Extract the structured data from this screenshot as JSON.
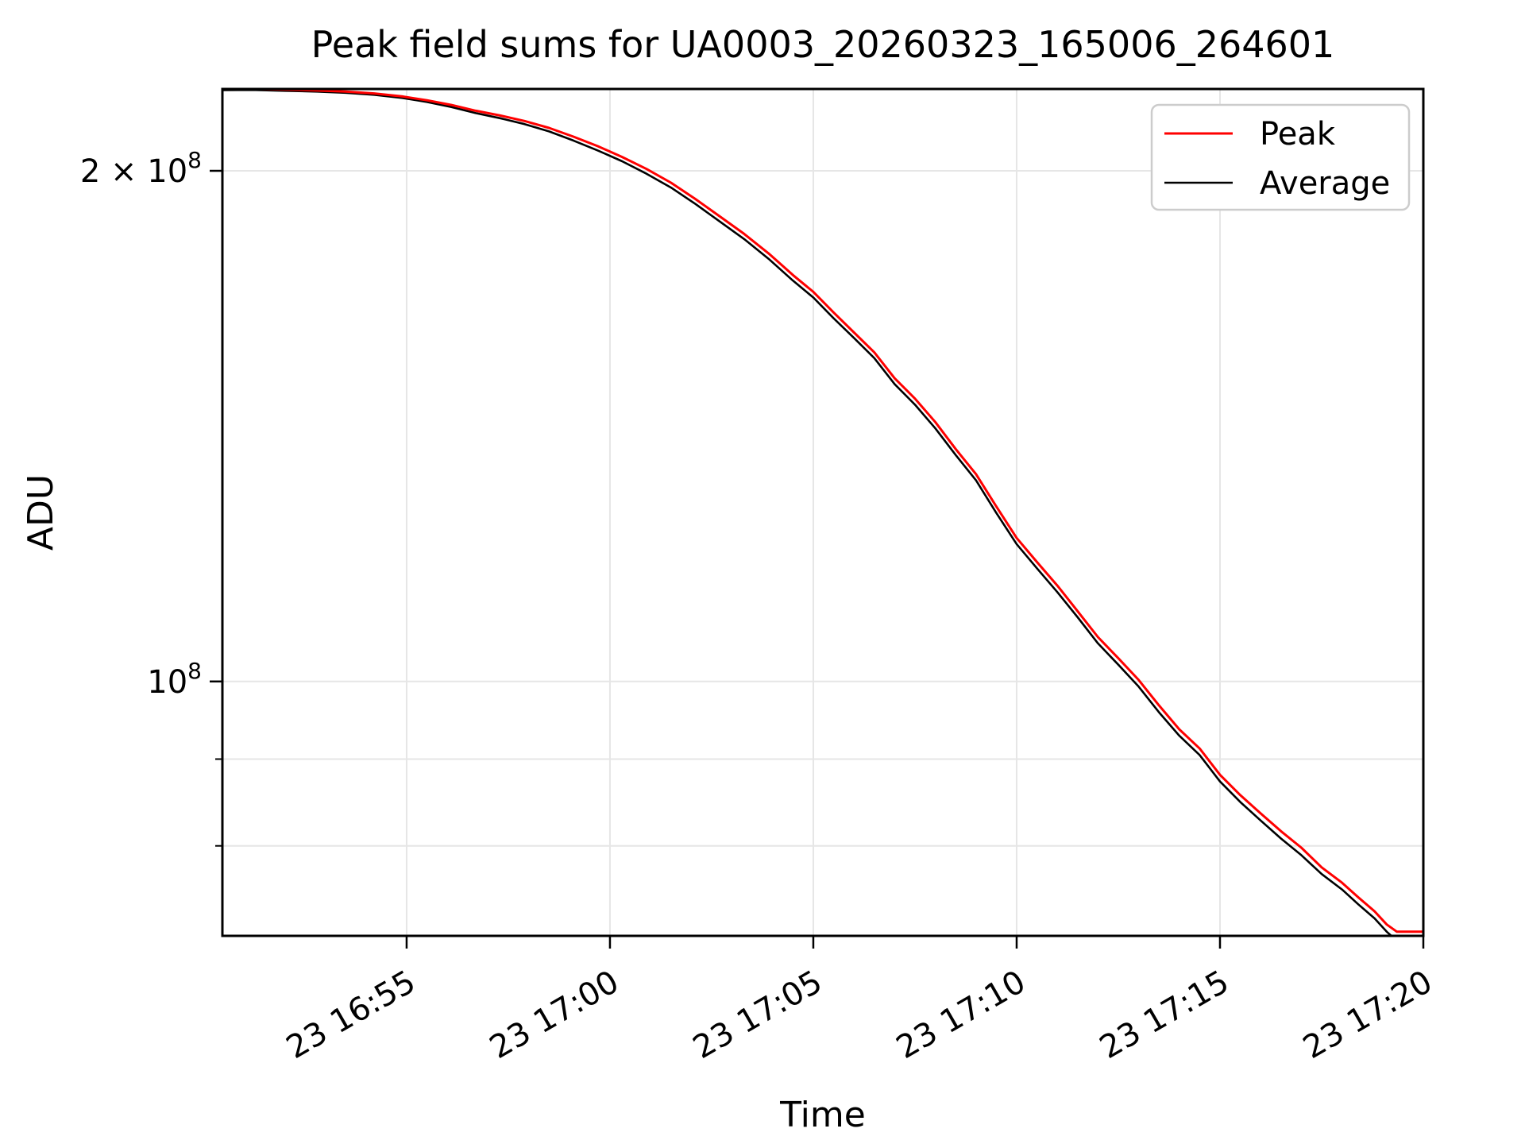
{
  "chart_data": {
    "type": "line",
    "title": "Peak field sums for UA0003_20260323_165006_264601",
    "xlabel": "Time",
    "ylabel": "ADU",
    "grid": true,
    "legend_position": "upper right",
    "x_axis": {
      "unit": "minutes after 2026-03-23 16:50",
      "range": [
        0.47,
        30
      ],
      "ticks": [
        {
          "t": 5,
          "label": "23 16:55"
        },
        {
          "t": 10,
          "label": "23 17:00"
        },
        {
          "t": 15,
          "label": "23 17:05"
        },
        {
          "t": 20,
          "label": "23 17:10"
        },
        {
          "t": 25,
          "label": "23 17:15"
        },
        {
          "t": 30,
          "label": "23 17:20"
        }
      ]
    },
    "y_axis": {
      "scale": "log",
      "range": [
        70800000,
        223500000
      ],
      "major_ticks": [
        {
          "value": 200000000,
          "label": "2 × 10",
          "sup": "8"
        },
        {
          "value": 100000000,
          "label": "10",
          "sup": "8"
        }
      ],
      "minor_ticks": [
        90000000,
        80000000
      ]
    },
    "series": [
      {
        "name": "Average",
        "color": "#000000",
        "width": 2.6,
        "points": [
          [
            0.47,
            223150000
          ],
          [
            1.2,
            223200000
          ],
          [
            2.0,
            222950000
          ],
          [
            2.8,
            222700000
          ],
          [
            3.5,
            222350000
          ],
          [
            4.2,
            221750000
          ],
          [
            4.9,
            220800000
          ],
          [
            5.5,
            219600000
          ],
          [
            6.1,
            218100000
          ],
          [
            6.7,
            216300000
          ],
          [
            7.3,
            214800000
          ],
          [
            7.9,
            213100000
          ],
          [
            8.5,
            211000000
          ],
          [
            9.1,
            208400000
          ],
          [
            9.7,
            205600000
          ],
          [
            10.3,
            202600000
          ],
          [
            10.9,
            199200000
          ],
          [
            11.5,
            195500000
          ],
          [
            12.1,
            191200000
          ],
          [
            12.7,
            186700000
          ],
          [
            13.3,
            182300000
          ],
          [
            13.9,
            177500000
          ],
          [
            14.5,
            172300000
          ],
          [
            15.0,
            168400000
          ],
          [
            15.5,
            163700000
          ],
          [
            16.0,
            159400000
          ],
          [
            16.5,
            155100000
          ],
          [
            17.0,
            149700000
          ],
          [
            17.5,
            145600000
          ],
          [
            18.0,
            141000000
          ],
          [
            18.5,
            136000000
          ],
          [
            19.0,
            131400000
          ],
          [
            19.5,
            125700000
          ],
          [
            20.0,
            120500000
          ],
          [
            20.5,
            116600000
          ],
          [
            21.0,
            112900000
          ],
          [
            21.5,
            109100000
          ],
          [
            22.0,
            105300000
          ],
          [
            22.5,
            102300000
          ],
          [
            23.0,
            99300000
          ],
          [
            23.5,
            95900000
          ],
          [
            24.0,
            92900000
          ],
          [
            24.5,
            90500000
          ],
          [
            25.0,
            87300000
          ],
          [
            25.5,
            84900000
          ],
          [
            26.0,
            82800000
          ],
          [
            26.5,
            80800000
          ],
          [
            27.0,
            79000000
          ],
          [
            27.5,
            77000000
          ],
          [
            28.0,
            75400000
          ],
          [
            28.4,
            73900000
          ],
          [
            28.8,
            72500000
          ],
          [
            29.1,
            71200000
          ],
          [
            29.3,
            70500000
          ],
          [
            29.5,
            69800000
          ]
        ]
      },
      {
        "name": "Peak",
        "color": "#ff0000",
        "width": 3.0,
        "points": [
          [
            0.47,
            223500000
          ],
          [
            1.2,
            223550000
          ],
          [
            2.0,
            223300000
          ],
          [
            2.8,
            223050000
          ],
          [
            3.5,
            222700000
          ],
          [
            4.2,
            222150000
          ],
          [
            4.9,
            221250000
          ],
          [
            5.5,
            220100000
          ],
          [
            6.1,
            218700000
          ],
          [
            6.7,
            217000000
          ],
          [
            7.3,
            215600000
          ],
          [
            7.9,
            214000000
          ],
          [
            8.5,
            212000000
          ],
          [
            9.1,
            209500000
          ],
          [
            9.7,
            206800000
          ],
          [
            10.3,
            203800000
          ],
          [
            10.9,
            200500000
          ],
          [
            11.5,
            196800000
          ],
          [
            12.1,
            192500000
          ],
          [
            12.7,
            188000000
          ],
          [
            13.3,
            183600000
          ],
          [
            13.9,
            178800000
          ],
          [
            14.5,
            173600000
          ],
          [
            15.0,
            169700000
          ],
          [
            15.5,
            165000000
          ],
          [
            16.0,
            160600000
          ],
          [
            16.5,
            156300000
          ],
          [
            17.0,
            150900000
          ],
          [
            17.5,
            146800000
          ],
          [
            18.0,
            142200000
          ],
          [
            18.5,
            137100000
          ],
          [
            19.0,
            132500000
          ],
          [
            19.5,
            126800000
          ],
          [
            20.0,
            121500000
          ],
          [
            20.5,
            117600000
          ],
          [
            21.0,
            113900000
          ],
          [
            21.5,
            110000000
          ],
          [
            22.0,
            106200000
          ],
          [
            22.5,
            103200000
          ],
          [
            23.0,
            100200000
          ],
          [
            23.5,
            96800000
          ],
          [
            24.0,
            93700000
          ],
          [
            24.5,
            91300000
          ],
          [
            25.0,
            88100000
          ],
          [
            25.5,
            85700000
          ],
          [
            26.0,
            83600000
          ],
          [
            26.5,
            81600000
          ],
          [
            27.0,
            79800000
          ],
          [
            27.5,
            77700000
          ],
          [
            28.0,
            76100000
          ],
          [
            28.4,
            74600000
          ],
          [
            28.8,
            73200000
          ],
          [
            29.1,
            71900000
          ],
          [
            29.35,
            71200000
          ],
          [
            30.0,
            71200000
          ]
        ]
      }
    ]
  },
  "colors": {
    "grid": "#e6e6e6",
    "spine": "#000000",
    "legend_border": "#cccccc",
    "background": "#ffffff"
  }
}
